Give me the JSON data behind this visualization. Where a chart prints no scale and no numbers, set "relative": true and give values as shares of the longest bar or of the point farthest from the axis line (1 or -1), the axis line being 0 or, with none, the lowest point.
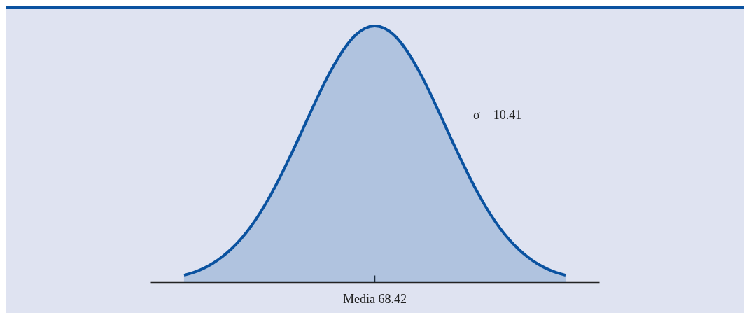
{
  "chart_data": {
    "type": "area",
    "relative": true,
    "categories": [
      null,
      null,
      null,
      null,
      null,
      null,
      null,
      null,
      null,
      null,
      null,
      null,
      null,
      null,
      null,
      null,
      null,
      null,
      null,
      null,
      null,
      null,
      null,
      null,
      null,
      null,
      null,
      null,
      null,
      null,
      null,
      null,
      null,
      null,
      null,
      null,
      null,
      null,
      null,
      null,
      null
    ],
    "series": [
      {
        "color": "#0a52a0",
        "values": [
          0.027,
          0.038,
          0.053,
          0.073,
          0.099,
          0.131,
          0.17,
          0.217,
          0.272,
          0.335,
          0.405,
          0.481,
          0.56,
          0.642,
          0.722,
          0.798,
          0.865,
          0.922,
          0.965,
          0.991,
          1,
          0.991,
          0.965,
          0.922,
          0.865,
          0.798,
          0.722,
          0.642,
          0.56,
          0.481,
          0.405,
          0.335,
          0.272,
          0.217,
          0.17,
          0.131,
          0.099,
          0.073,
          0.053,
          0.038,
          0.027
        ]
      }
    ],
    "annotations": [
      "Media 68.42",
      "σ = 10.41"
    ]
  }
}
